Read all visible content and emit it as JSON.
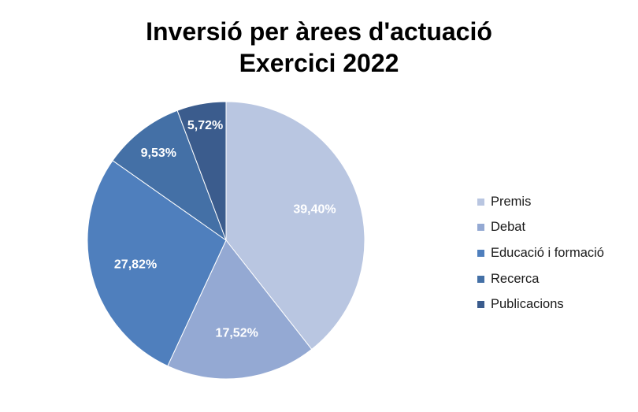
{
  "chart_data": {
    "type": "pie",
    "title": "Inversió per àrees d'actuació",
    "subtitle": "Exercici 2022",
    "slices": [
      {
        "name": "Premis",
        "value": 39.4,
        "label": "39,40%",
        "color": "#b9c6e1"
      },
      {
        "name": "Debat",
        "value": 17.52,
        "label": "17,52%",
        "color": "#94a9d3"
      },
      {
        "name": "Educació i formació",
        "value": 27.82,
        "label": "27,82%",
        "color": "#4f7fbd"
      },
      {
        "name": "Recerca",
        "value": 9.53,
        "label": "9,53%",
        "color": "#4470a6"
      },
      {
        "name": "Publicacions",
        "value": 5.72,
        "label": "5,72%",
        "color": "#3b5c8d"
      }
    ],
    "start_angle_deg": 0,
    "direction": "clockwise",
    "legend_position": "right"
  }
}
